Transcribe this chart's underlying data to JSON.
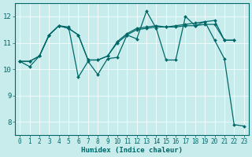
{
  "xlabel": "Humidex (Indice chaleur)",
  "xlim_min": -0.5,
  "xlim_max": 23.5,
  "ylim_min": 7.5,
  "ylim_max": 12.5,
  "yticks": [
    8,
    9,
    10,
    11,
    12
  ],
  "xticks": [
    0,
    1,
    2,
    3,
    4,
    5,
    6,
    7,
    8,
    9,
    10,
    11,
    12,
    13,
    14,
    15,
    16,
    17,
    18,
    19,
    20,
    21,
    22,
    23
  ],
  "bg_color": "#c8ecec",
  "line_color": "#006868",
  "grid_color": "#ffffff",
  "line1_y": [
    10.3,
    10.1,
    10.5,
    11.3,
    11.65,
    11.6,
    9.7,
    10.3,
    9.8,
    10.4,
    10.45,
    11.3,
    11.15,
    12.2,
    11.55,
    10.35,
    10.35,
    12.0,
    11.65,
    11.8,
    11.1,
    10.4,
    7.9,
    7.85
  ],
  "line2_y": [
    10.3,
    10.3,
    10.5,
    11.3,
    11.65,
    11.55,
    11.3,
    10.35,
    10.35,
    10.5,
    11.0,
    11.3,
    11.5,
    11.55,
    11.6,
    11.6,
    11.6,
    11.65,
    11.65,
    11.7,
    11.7,
    11.1,
    11.1,
    null
  ],
  "line3_y": [
    10.3,
    10.3,
    10.5,
    11.3,
    11.65,
    11.55,
    11.3,
    10.35,
    10.35,
    10.5,
    11.05,
    11.35,
    11.55,
    11.6,
    11.65,
    11.6,
    11.65,
    11.7,
    11.75,
    11.8,
    11.85,
    11.1,
    11.1,
    null
  ],
  "tick_fontsize": 5.5,
  "xlabel_fontsize": 6.5
}
